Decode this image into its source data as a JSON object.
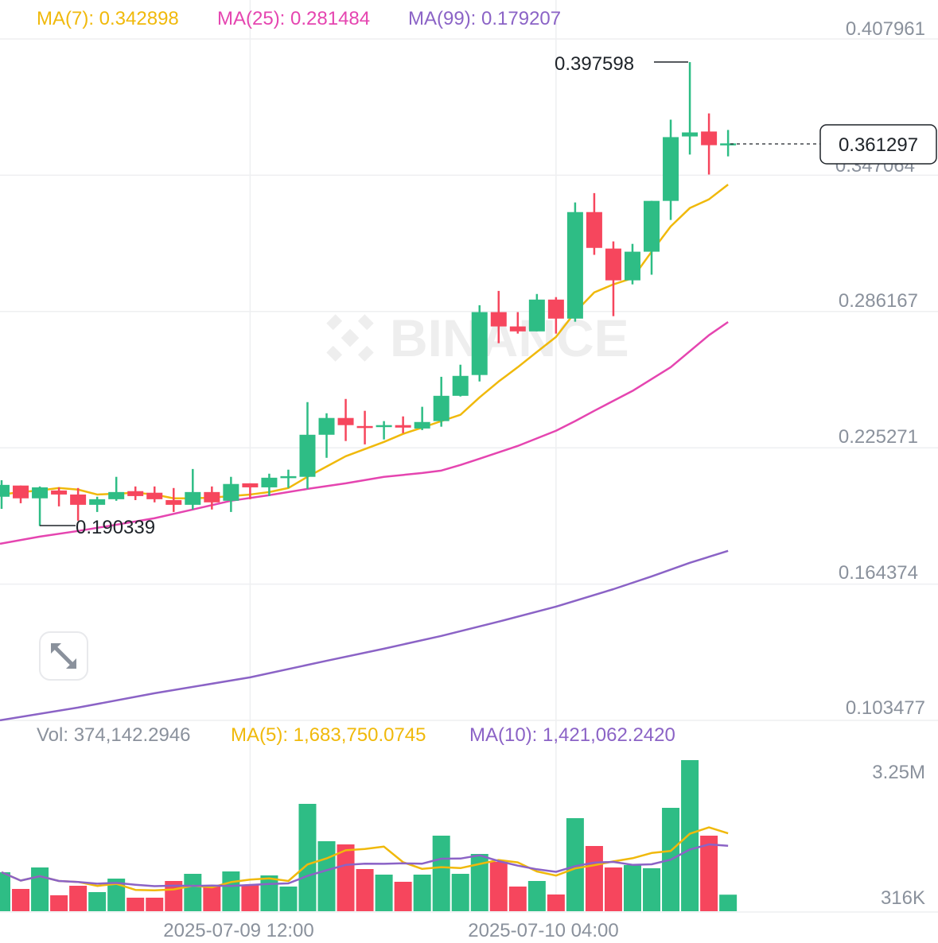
{
  "legend": {
    "ma7": "MA(7): 0.342898",
    "ma25": "MA(25): 0.281484",
    "ma99": "MA(99): 0.179207",
    "vol": "Vol: 374,142.2946",
    "vol_ma5": "MA(5): 1,683,750.0745",
    "vol_ma10": "MA(10): 1,421,062.2420"
  },
  "watermark": "BINANCE",
  "colors": {
    "up": "#2ebd85",
    "down": "#f6465d",
    "ma7": "#f0b90b",
    "ma25": "#e545b0",
    "ma99": "#8b63c6",
    "grid": "#eeeff1",
    "axis_text": "#8a919c"
  },
  "controls": {
    "expand_icon": "expand-arrows-icon"
  },
  "chart_data": [
    {
      "type": "candlestick",
      "y_ticks": [
        "0.407961",
        "0.347064",
        "0.286167",
        "0.225271",
        "0.164374",
        "0.103477"
      ],
      "ylim": [
        0.103477,
        0.407961
      ],
      "x_ticks": [
        "2025-07-09 12:00",
        "2025-07-10 04:00"
      ],
      "x_tick_candle_index": [
        13,
        29
      ],
      "grid": true,
      "current_price": "0.361297",
      "high_annotation": "0.397598",
      "low_annotation": "0.190339",
      "ohlc": [
        [
          0.2034,
          0.2108,
          0.198,
          0.2087
        ],
        [
          0.2084,
          0.2084,
          0.2005,
          0.2027
        ],
        [
          0.2027,
          0.208,
          0.190339,
          0.2076
        ],
        [
          0.2062,
          0.2076,
          0.1991,
          0.2044
        ],
        [
          0.2044,
          0.2073,
          0.1927,
          0.1998
        ],
        [
          0.1998,
          0.2034,
          0.1966,
          0.2023
        ],
        [
          0.2023,
          0.2123,
          0.2016,
          0.2055
        ],
        [
          0.2059,
          0.208,
          0.2019,
          0.2037
        ],
        [
          0.2052,
          0.208,
          0.2009,
          0.2023
        ],
        [
          0.2019,
          0.2073,
          0.1966,
          0.1998
        ],
        [
          0.1998,
          0.2158,
          0.1977,
          0.2055
        ],
        [
          0.2055,
          0.208,
          0.1977,
          0.2009
        ],
        [
          0.2016,
          0.2123,
          0.1966,
          0.2091
        ],
        [
          0.2094,
          0.2094,
          0.2023,
          0.2076
        ],
        [
          0.2076,
          0.2137,
          0.2037,
          0.2119
        ],
        [
          0.2119,
          0.2155,
          0.2073,
          0.2126
        ],
        [
          0.2123,
          0.2457,
          0.2069,
          0.2311
        ],
        [
          0.2311,
          0.2407,
          0.2208,
          0.2386
        ],
        [
          0.2386,
          0.2471,
          0.2283,
          0.2354
        ],
        [
          0.235,
          0.2418,
          0.2268,
          0.2343
        ],
        [
          0.2347,
          0.2372,
          0.229,
          0.2354
        ],
        [
          0.2354,
          0.2393,
          0.2318,
          0.2343
        ],
        [
          0.2339,
          0.2436,
          0.2332,
          0.2368
        ],
        [
          0.2372,
          0.257,
          0.2347,
          0.2485
        ],
        [
          0.2485,
          0.2624,
          0.2482,
          0.2574
        ],
        [
          0.2578,
          0.289,
          0.2549,
          0.2859
        ],
        [
          0.2859,
          0.2954,
          0.272,
          0.2795
        ],
        [
          0.2795,
          0.2859,
          0.2763,
          0.2773
        ],
        [
          0.2773,
          0.294,
          0.2773,
          0.2915
        ],
        [
          0.2915,
          0.2926,
          0.2763,
          0.283
        ],
        [
          0.283,
          0.3349,
          0.2816,
          0.3306
        ],
        [
          0.3306,
          0.3391,
          0.3115,
          0.3146
        ],
        [
          0.3143,
          0.3175,
          0.2841,
          0.3001
        ],
        [
          0.3001,
          0.3164,
          0.2983,
          0.3129
        ],
        [
          0.3129,
          0.3356,
          0.3026,
          0.3356
        ],
        [
          0.3356,
          0.3719,
          0.3271,
          0.3641
        ],
        [
          0.3644,
          0.397598,
          0.3563,
          0.3662
        ],
        [
          0.3666,
          0.3747,
          0.3474,
          0.3605
        ],
        [
          0.3609,
          0.3673,
          0.3555,
          0.361297
        ]
      ],
      "ma7": [
        0.2044,
        0.2055,
        0.2062,
        0.2073,
        0.2066,
        0.2044,
        0.2048,
        0.2052,
        0.2044,
        0.2027,
        0.2027,
        0.203,
        0.2037,
        0.2044,
        0.2055,
        0.2073,
        0.2123,
        0.2169,
        0.2215,
        0.2247,
        0.2279,
        0.2315,
        0.2343,
        0.2372,
        0.24,
        0.2478,
        0.2549,
        0.2613,
        0.2681,
        0.2748,
        0.2859,
        0.2947,
        0.2983,
        0.3011,
        0.3129,
        0.3242,
        0.3324,
        0.3363,
        0.342898
      ],
      "ma25": {
        "index": [
          0,
          2,
          4,
          6,
          8,
          10,
          12,
          14,
          16,
          18,
          20,
          22,
          23,
          24,
          25,
          27,
          29,
          30,
          31,
          33,
          35,
          37,
          38
        ],
        "values": [
          0.1824,
          0.1856,
          0.1881,
          0.1909,
          0.1938,
          0.1977,
          0.2016,
          0.2041,
          0.2069,
          0.2094,
          0.2123,
          0.214,
          0.2151,
          0.2176,
          0.2204,
          0.2261,
          0.2329,
          0.2372,
          0.2418,
          0.2507,
          0.2613,
          0.2756,
          0.281484
        ]
      },
      "ma99": {
        "index": [
          0,
          4,
          8,
          13,
          17,
          20,
          23,
          26,
          29,
          32,
          34,
          36,
          38
        ],
        "values": [
          0.1035,
          0.1092,
          0.1156,
          0.1227,
          0.1301,
          0.1355,
          0.1412,
          0.1476,
          0.1543,
          0.1621,
          0.1678,
          0.1739,
          0.179207
        ]
      }
    },
    {
      "type": "bar",
      "y_ticks": [
        "3.25M",
        "316K"
      ],
      "volume": [
        882000,
        504000,
        990000,
        360000,
        576000,
        432000,
        738000,
        306000,
        306000,
        684000,
        846000,
        558000,
        900000,
        594000,
        810000,
        558000,
        2430000,
        1584000,
        1512000,
        954000,
        828000,
        666000,
        828000,
        1710000,
        846000,
        1296000,
        1116000,
        558000,
        684000,
        378000,
        2106000,
        1476000,
        990000,
        1044000,
        972000,
        2340000,
        3420000,
        1710000,
        374142
      ]
    }
  ]
}
